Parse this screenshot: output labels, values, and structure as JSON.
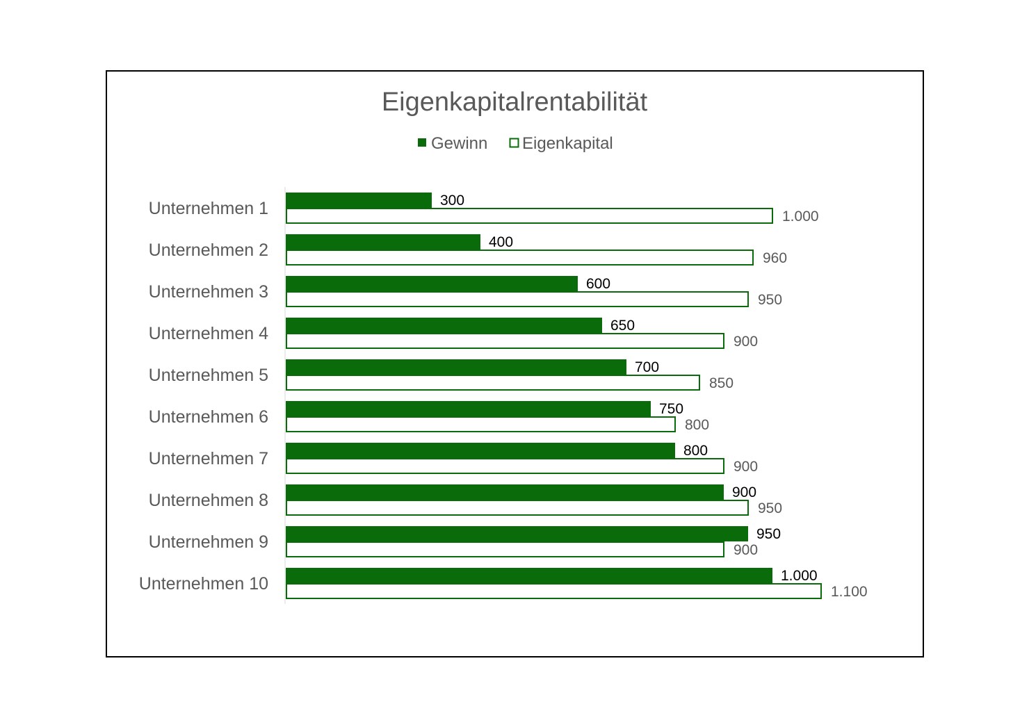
{
  "chart_data": {
    "type": "bar",
    "orientation": "horizontal",
    "title": "Eigenkapitalrentabilität",
    "categories": [
      "Unternehmen 1",
      "Unternehmen 2",
      "Unternehmen 3",
      "Unternehmen 4",
      "Unternehmen 5",
      "Unternehmen 6",
      "Unternehmen 7",
      "Unternehmen 8",
      "Unternehmen 9",
      "Unternehmen 10"
    ],
    "series": [
      {
        "name": "Gewinn",
        "values": [
          300,
          400,
          600,
          650,
          700,
          750,
          800,
          900,
          950,
          1000
        ],
        "labels": [
          "300",
          "400",
          "600",
          "650",
          "700",
          "750",
          "800",
          "900",
          "950",
          "1.000"
        ],
        "color": "#0a6b0a",
        "filled": true
      },
      {
        "name": "Eigenkapital",
        "values": [
          1000,
          960,
          950,
          900,
          850,
          800,
          900,
          950,
          900,
          1100
        ],
        "labels": [
          "1.000",
          "960",
          "950",
          "900",
          "850",
          "800",
          "900",
          "950",
          "900",
          "1.100"
        ],
        "color": "#0a6b0a",
        "filled": false
      }
    ],
    "xlim": [
      0,
      1100
    ],
    "legend_position": "top",
    "grid": false,
    "xaxis_visible": false
  }
}
